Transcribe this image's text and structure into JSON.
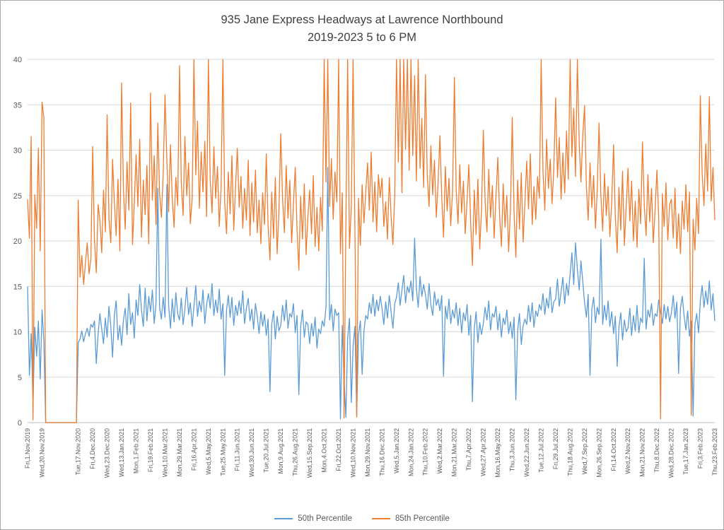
{
  "chart": {
    "title_line1": "935 Jane Express Headways at Lawrence Northbound",
    "title_line2": "2019-2023 5 to 6 PM"
  },
  "chart_data": {
    "type": "line",
    "title": "935 Jane Express Headways at Lawrence Northbound 2019-2023 5 to 6 PM",
    "xlabel": "",
    "ylabel": "",
    "ylim": [
      0,
      40
    ],
    "y_ticks": [
      0,
      5,
      10,
      15,
      20,
      25,
      30,
      35,
      40
    ],
    "grid": true,
    "legend_position": "bottom",
    "x_labels": [
      "Fri,1.Nov.2019",
      "Wed,20.Nov.2019",
      "Tue,17.Nov.2020",
      "Fri,4.Dec.2020",
      "Wed,23.Dec.2020",
      "Wed,13.Jan.2021",
      "Mon,1.Feb.2021",
      "Fri,19.Feb.2021",
      "Wed,10.Mar.2021",
      "Mon,29.Mar.2021",
      "Fri,16.Apr.2021",
      "Wed,5.May.2021",
      "Tue,25.May.2021",
      "Fri,11.Jun.2021",
      "Wed,30.Jun.2021",
      "Tue,20.Jul.2021",
      "Mon,9.Aug.2021",
      "Thu,26.Aug.2021",
      "Wed,15.Sep.2021",
      "Mon,4.Oct.2021",
      "Fri,22.Oct.2021",
      "Wed,10.Nov.2021",
      "Mon,29.Nov.2021",
      "Thu,16.Dec.2021",
      "Wed,5.Jan.2022",
      "Mon,24.Jan.2022",
      "Thu,10.Feb.2022",
      "Wed,2.Mar.2022",
      "Mon,21.Mar.2022",
      "Thu,7.Apr.2022",
      "Wed,27.Apr.2022",
      "Mon,16.May.2022",
      "Thu,3.Jun.2022",
      "Wed,22.Jun.2022",
      "Tue,12.Jul.2022",
      "Fri,29.Jul.2022",
      "Thu,18.Aug.2022",
      "Wed,7.Sep.2022",
      "Mon,26.Sep.2022",
      "Fri,14.Oct.2022",
      "Wed,2.Nov.2022",
      "Mon,21.Nov.2022",
      "Thu,8.Dec.2022",
      "Wed,28.Dec.2022",
      "Tue,17.Jan.2023",
      "Fri,3.Feb.2023",
      "Thu,23.Feb.2023"
    ],
    "x_label_indices": [
      0,
      8,
      28,
      36,
      44,
      52,
      60,
      68,
      76,
      84,
      92,
      100,
      108,
      116,
      124,
      132,
      140,
      148,
      156,
      164,
      172,
      180,
      188,
      196,
      204,
      212,
      220,
      228,
      236,
      244,
      252,
      260,
      268,
      276,
      284,
      292,
      300,
      308,
      316,
      324,
      332,
      340,
      348,
      356,
      364,
      372,
      380
    ],
    "series": [
      {
        "name": "50th Percentile",
        "color": "#5B9BD5",
        "values": [
          15,
          5.2,
          9.8,
          2.1,
          10.5,
          7.3,
          11.2,
          4.8,
          12.4,
          9,
          0,
          0,
          0,
          0,
          0,
          0,
          0,
          0,
          0,
          0,
          0,
          0,
          0,
          0,
          0,
          0,
          0,
          0,
          8.8,
          9.2,
          10.1,
          8.9,
          9.8,
          10.4,
          9.5,
          10.8,
          10.5,
          11.2,
          6.5,
          9.8,
          12,
          10.3,
          8.7,
          11.5,
          9.4,
          12.8,
          10.6,
          7.2,
          11.9,
          13.4,
          9.1,
          10.7,
          8.5,
          11.3,
          12.6,
          9.7,
          14.2,
          10.8,
          12.1,
          9.3,
          13.5,
          11.8,
          15.2,
          12.4,
          10.6,
          14.8,
          11.2,
          13.9,
          12.2,
          14.6,
          10.9,
          13.1,
          25.8,
          12.7,
          11.4,
          13.8,
          11.6,
          26.2,
          12.9,
          10.4,
          13.6,
          11.1,
          14.3,
          12,
          11.3,
          13.7,
          10.8,
          12.5,
          14.9,
          11.9,
          13.2,
          10.6,
          12.8,
          15.1,
          11.7,
          13.4,
          12.2,
          14.6,
          10.9,
          13,
          14.2,
          12.6,
          15.3,
          11.8,
          13.5,
          12.1,
          14.7,
          11.4,
          13.1,
          5.2,
          12.4,
          14,
          11.6,
          13.8,
          10.7,
          12.9,
          11.8,
          13.4,
          12,
          14.5,
          10.9,
          12.6,
          13.7,
          11.2,
          12.5,
          10.3,
          13.1,
          11.7,
          9.8,
          12.2,
          10.6,
          11.9,
          9.6,
          11.4,
          3.4,
          10.8,
          12.3,
          9.2,
          11.7,
          10.1,
          10.7,
          12.9,
          11.2,
          13.5,
          10.4,
          12,
          11.6,
          13.1,
          9.9,
          11.8,
          3.1,
          10.5,
          12.4,
          9.4,
          11.1,
          10.8,
          8.7,
          10.9,
          9.5,
          11.6,
          8.2,
          10.3,
          9.8,
          11.2,
          10.6,
          12.8,
          28.1,
          11.3,
          13,
          10.1,
          12.5,
          11.8,
          12.1,
          0.4,
          10.7,
          4.8,
          0.6,
          9.3,
          11.5,
          2.2,
          8.4,
          10.6,
          0.8,
          9.7,
          11.2,
          5.3,
          10.1,
          11.8,
          11.4,
          13.2,
          12,
          14.1,
          11.7,
          13.5,
          12.3,
          13.9,
          12.6,
          10.8,
          13.3,
          11.5,
          14,
          12.2,
          10.4,
          13.1,
          13.8,
          15.4,
          12.9,
          14.6,
          16.2,
          13.2,
          15,
          14.3,
          15.6,
          13.4,
          20.3,
          14.8,
          12.7,
          16.1,
          13.9,
          15.2,
          14.1,
          12.5,
          15.3,
          13,
          11.8,
          14.4,
          12.9,
          13.6,
          12.3,
          14,
          5.1,
          12.8,
          11.4,
          13.6,
          10.9,
          12.4,
          11.5,
          13.2,
          10.7,
          12.6,
          9.9,
          12.1,
          11.2,
          13,
          9.6,
          11.8,
          2.3,
          10.4,
          12.2,
          8.8,
          11,
          9.7,
          10.9,
          12.7,
          11.3,
          13.4,
          10.2,
          12,
          11.6,
          12.8,
          10.2,
          12,
          9.4,
          11.5,
          10.8,
          12.4,
          9.8,
          11.1,
          9.3,
          11.6,
          2.5,
          10.1,
          12,
          8.6,
          10.7,
          11.4,
          10.8,
          12.9,
          11.1,
          13.2,
          10.5,
          12.3,
          11.7,
          13,
          12.4,
          14.2,
          11.9,
          13.7,
          12.6,
          14.9,
          12.1,
          13.3,
          13.6,
          15.8,
          12.8,
          14.4,
          16,
          13.1,
          15.3,
          14,
          16.4,
          18.7,
          15.2,
          19.8,
          16.9,
          14.6,
          17.8,
          15.5,
          13.2,
          11.6,
          14.1,
          5.2,
          12.5,
          13.8,
          11,
          12.7,
          11.9,
          20.2,
          10.8,
          12.9,
          11.3,
          13.4,
          10.6,
          12.2,
          9.8,
          11.7,
          6.2,
          10.5,
          12.1,
          9.1,
          11.3,
          10,
          10.4,
          12.6,
          9.6,
          11.8,
          10.1,
          12.9,
          9.9,
          11.5,
          11,
          18.1,
          10.3,
          12.4,
          11.6,
          13.1,
          10.7,
          12,
          11.7,
          13.5,
          12.2,
          10.9,
          13,
          11.4,
          12.8,
          11.1,
          12.1,
          14,
          11.5,
          13.3,
          5.4,
          12.6,
          13.9,
          11.8,
          10.2,
          12.3,
          9.5,
          11.2,
          0.7,
          10.8,
          12,
          9.9,
          13.4,
          15.1,
          12.7,
          14.5,
          13,
          15.6,
          12.4,
          14.2,
          11.2
        ]
      },
      {
        "name": "85th Percentile",
        "color": "#ED7D31",
        "values": [
          24.6,
          20.3,
          31.5,
          0.3,
          25.1,
          21.4,
          30.2,
          18.9,
          35.3,
          33.6,
          0,
          0,
          0,
          0,
          0,
          0,
          0,
          0,
          0,
          0,
          0,
          0,
          0,
          0,
          0,
          0,
          0,
          0,
          24.5,
          16,
          18.4,
          15.2,
          17.6,
          19.8,
          16.4,
          18,
          30.4,
          20.1,
          16.5,
          24,
          22.3,
          18.7,
          25.6,
          21,
          33.9,
          22.5,
          19.8,
          29,
          24.2,
          20.6,
          26.8,
          18.9,
          37.4,
          25.6,
          21.3,
          28.7,
          23.4,
          35.2,
          19.6,
          24.1,
          29.5,
          23.8,
          31.2,
          20.4,
          26.7,
          22.9,
          28.3,
          19.7,
          36.3,
          24.5,
          29.4,
          21.8,
          33,
          25.2,
          22.6,
          27.4,
          36.1,
          28.9,
          23.2,
          30.6,
          24.8,
          21.5,
          27,
          23.9,
          39.3,
          26.4,
          22.8,
          31.5,
          25,
          28.6,
          21.9,
          24.6,
          40,
          27.3,
          33.2,
          23.6,
          29.8,
          25.4,
          31,
          22.7,
          40,
          26.8,
          23.1,
          30.4,
          24.7,
          28.2,
          21.6,
          25.9,
          40,
          24.3,
          20.8,
          27.6,
          23,
          29.4,
          21.2,
          26.1,
          30.2,
          23.7,
          27.1,
          21.4,
          25.8,
          22.3,
          28.9,
          20.6,
          26.4,
          22.1,
          27.8,
          20.9,
          24.5,
          19.7,
          25.3,
          21.8,
          29.6,
          21.7,
          17.9,
          25.4,
          20.3,
          27,
          18.6,
          23.2,
          31.8,
          24.6,
          20.9,
          28.3,
          22.5,
          26.7,
          19.8,
          24,
          28.1,
          21.4,
          16.8,
          24.9,
          20.2,
          26.3,
          18.5,
          22.7,
          25.6,
          20.8,
          27.2,
          19.4,
          23.7,
          18.9,
          24.8,
          21.1,
          40,
          26.5,
          40,
          23.8,
          29.1,
          22.4,
          27.6,
          24.3,
          40,
          18.6,
          25.3,
          0.5,
          21.7,
          40,
          19.2,
          23.9,
          40,
          21.3,
          0.6,
          24.7,
          19.5,
          26.2,
          22,
          25.4,
          28.6,
          23.4,
          29.8,
          22.1,
          26.5,
          21,
          27.3,
          24.8,
          26.9,
          21.6,
          24.3,
          20.2,
          27,
          22.8,
          19.6,
          25.1,
          40,
          28.7,
          40,
          25.3,
          40,
          30.1,
          40,
          27.8,
          40,
          29.4,
          38.2,
          26.6,
          40,
          28,
          33.5,
          25.9,
          38.3,
          27.2,
          23.8,
          30.5,
          25.1,
          28.9,
          22.6,
          26.4,
          31.6,
          24.8,
          20.4,
          28.2,
          23.3,
          26.9,
          21.7,
          25.5,
          38,
          25.7,
          21.9,
          28.4,
          23.1,
          26.6,
          20.8,
          24.5,
          28.4,
          22,
          17.3,
          25.6,
          20.7,
          26.8,
          19.1,
          23.4,
          32.2,
          24.4,
          21,
          27.9,
          22.6,
          26.1,
          20.3,
          24.9,
          29.2,
          22.8,
          19.4,
          26.3,
          21.5,
          25,
          18.8,
          23.6,
          33.6,
          23.1,
          18.2,
          26.7,
          21.3,
          27.5,
          19.9,
          24.2,
          28.8,
          23.5,
          29.6,
          21.8,
          26,
          22.4,
          27.1,
          24.7,
          40,
          27.6,
          23.4,
          31.2,
          25.8,
          29,
          24.1,
          27.9,
          35.8,
          27,
          31.4,
          24.6,
          29.7,
          25.3,
          32.1,
          26.8,
          40,
          29.3,
          34.6,
          27.1,
          40,
          30.8,
          26.5,
          31.7,
          34.9,
          25.9,
          22.3,
          28.6,
          23.7,
          27.2,
          21.4,
          25.6,
          33,
          24.9,
          21.1,
          27.4,
          22.8,
          26,
          20.5,
          24.3,
          30.6,
          22.6,
          18.7,
          25.9,
          21.2,
          27.7,
          19.5,
          23.8,
          28,
          22.2,
          26.6,
          20,
          24.4,
          19.3,
          25.7,
          21.9,
          30.9,
          24,
          20.6,
          27.3,
          22.1,
          25.8,
          19.8,
          23.5,
          27.8,
          22.5,
          0.4,
          25.2,
          21.6,
          26.4,
          20.1,
          24,
          24.6,
          20.3,
          25.8,
          19.2,
          23,
          18.6,
          24.4,
          21.3,
          26.2,
          21,
          25.4,
          0.8,
          22.4,
          19,
          24.7,
          20.8,
          36,
          27.4,
          23.9,
          30.7,
          25.5,
          35.9,
          24.4,
          28.1,
          22.3
        ]
      }
    ]
  }
}
